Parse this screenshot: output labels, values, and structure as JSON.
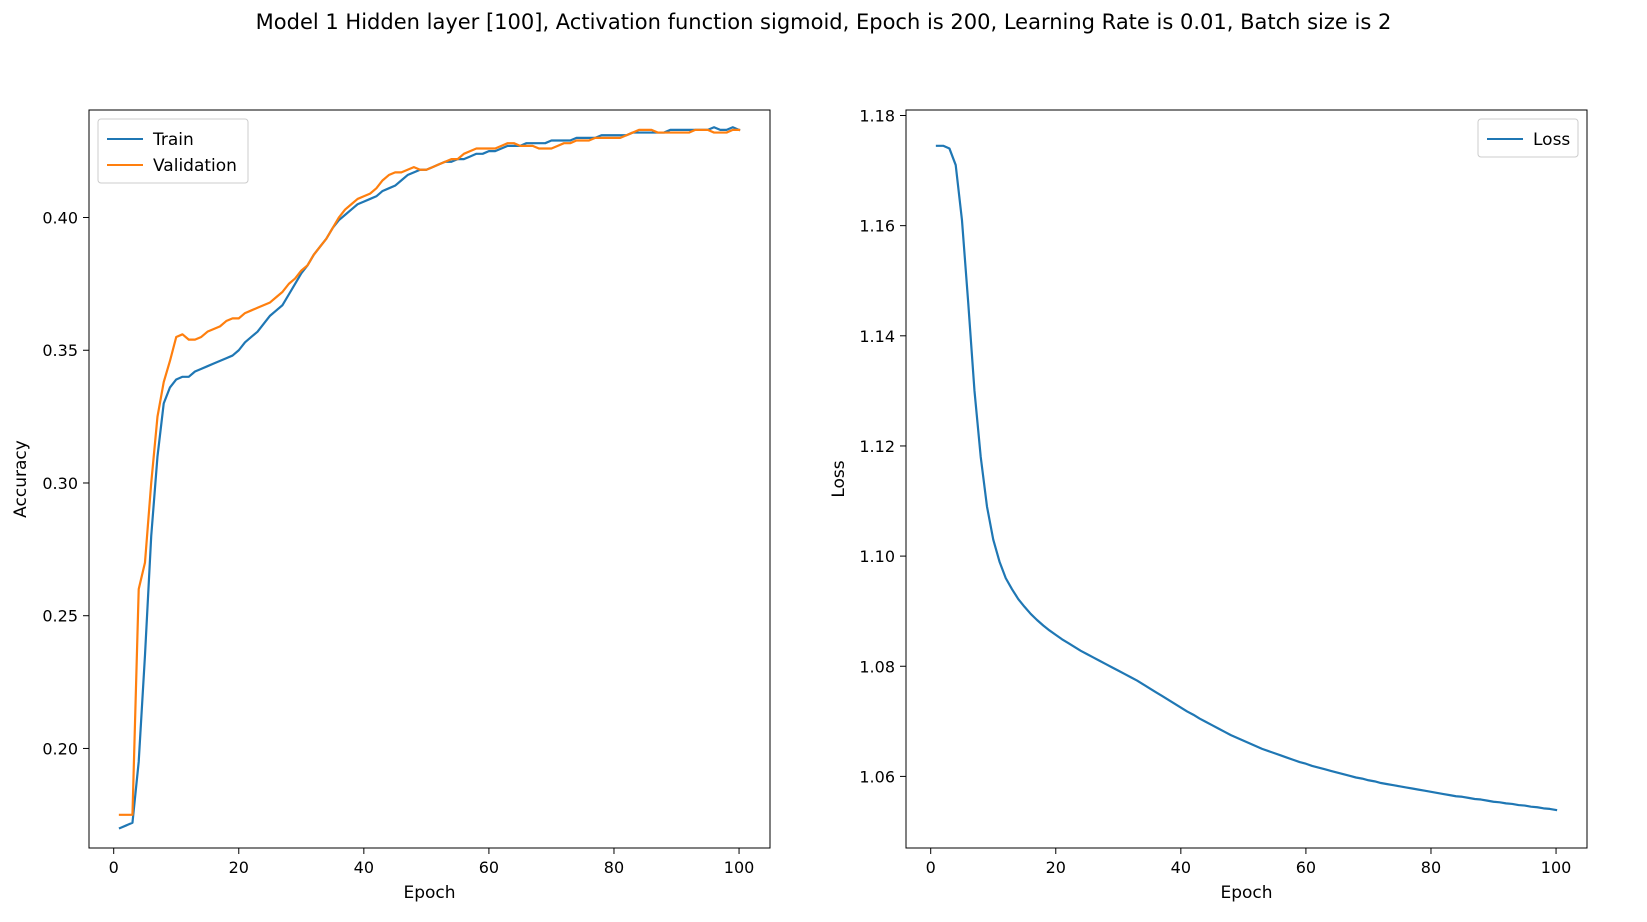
{
  "figure": {
    "title": "Model 1 Hidden layer [100], Activation function sigmoid, Epoch is 200, Learning Rate is 0.01, Batch size is 2"
  },
  "chart_data": [
    {
      "type": "line",
      "title": "",
      "xlabel": "Epoch",
      "ylabel": "Accuracy",
      "xlim": [
        -3.95,
        104.95
      ],
      "ylim": [
        0.1625,
        0.4405
      ],
      "xticks": [
        0,
        20,
        40,
        60,
        80,
        100
      ],
      "yticks": [
        0.2,
        0.25,
        0.3,
        0.35,
        0.4
      ],
      "ytick_labels": [
        "0.20",
        "0.25",
        "0.30",
        "0.35",
        "0.40"
      ],
      "grid": false,
      "legend": "upper-left",
      "x": [
        1,
        2,
        3,
        4,
        5,
        6,
        7,
        8,
        9,
        10,
        11,
        12,
        13,
        14,
        15,
        16,
        17,
        18,
        19,
        20,
        21,
        22,
        23,
        24,
        25,
        26,
        27,
        28,
        29,
        30,
        31,
        32,
        33,
        34,
        35,
        36,
        37,
        38,
        39,
        40,
        41,
        42,
        43,
        44,
        45,
        46,
        47,
        48,
        49,
        50,
        51,
        52,
        53,
        54,
        55,
        56,
        57,
        58,
        59,
        60,
        61,
        62,
        63,
        64,
        65,
        66,
        67,
        68,
        69,
        70,
        71,
        72,
        73,
        74,
        75,
        76,
        77,
        78,
        79,
        80,
        81,
        82,
        83,
        84,
        85,
        86,
        87,
        88,
        89,
        90,
        91,
        92,
        93,
        94,
        95,
        96,
        97,
        98,
        99,
        100
      ],
      "series": [
        {
          "name": "Train",
          "color": "#1f77b4",
          "values": [
            0.17,
            0.171,
            0.172,
            0.195,
            0.235,
            0.28,
            0.31,
            0.33,
            0.336,
            0.339,
            0.34,
            0.34,
            0.342,
            0.343,
            0.344,
            0.345,
            0.346,
            0.347,
            0.348,
            0.35,
            0.353,
            0.355,
            0.357,
            0.36,
            0.363,
            0.365,
            0.367,
            0.371,
            0.375,
            0.379,
            0.382,
            0.386,
            0.389,
            0.392,
            0.396,
            0.399,
            0.401,
            0.403,
            0.405,
            0.406,
            0.407,
            0.408,
            0.41,
            0.411,
            0.412,
            0.414,
            0.416,
            0.417,
            0.418,
            0.418,
            0.419,
            0.42,
            0.421,
            0.421,
            0.422,
            0.422,
            0.423,
            0.424,
            0.424,
            0.425,
            0.425,
            0.426,
            0.427,
            0.427,
            0.427,
            0.428,
            0.428,
            0.428,
            0.428,
            0.429,
            0.429,
            0.429,
            0.429,
            0.43,
            0.43,
            0.43,
            0.43,
            0.431,
            0.431,
            0.431,
            0.431,
            0.431,
            0.432,
            0.432,
            0.432,
            0.432,
            0.432,
            0.432,
            0.433,
            0.433,
            0.433,
            0.433,
            0.433,
            0.433,
            0.433,
            0.434,
            0.433,
            0.433,
            0.434,
            0.433
          ]
        },
        {
          "name": "Validation",
          "color": "#ff7f0e",
          "values": [
            0.175,
            0.175,
            0.175,
            0.26,
            0.27,
            0.3,
            0.325,
            0.338,
            0.346,
            0.355,
            0.356,
            0.354,
            0.354,
            0.355,
            0.357,
            0.358,
            0.359,
            0.361,
            0.362,
            0.362,
            0.364,
            0.365,
            0.366,
            0.367,
            0.368,
            0.37,
            0.372,
            0.375,
            0.377,
            0.38,
            0.382,
            0.386,
            0.389,
            0.392,
            0.396,
            0.4,
            0.403,
            0.405,
            0.407,
            0.408,
            0.409,
            0.411,
            0.414,
            0.416,
            0.417,
            0.417,
            0.418,
            0.419,
            0.418,
            0.418,
            0.419,
            0.42,
            0.421,
            0.422,
            0.422,
            0.424,
            0.425,
            0.426,
            0.426,
            0.426,
            0.426,
            0.427,
            0.428,
            0.428,
            0.427,
            0.427,
            0.427,
            0.426,
            0.426,
            0.426,
            0.427,
            0.428,
            0.428,
            0.429,
            0.429,
            0.429,
            0.43,
            0.43,
            0.43,
            0.43,
            0.43,
            0.431,
            0.432,
            0.433,
            0.433,
            0.433,
            0.432,
            0.432,
            0.432,
            0.432,
            0.432,
            0.432,
            0.433,
            0.433,
            0.433,
            0.432,
            0.432,
            0.432,
            0.433,
            0.433
          ]
        }
      ]
    },
    {
      "type": "line",
      "title": "",
      "xlabel": "Epoch",
      "ylabel": "Loss",
      "xlim": [
        -3.95,
        104.95
      ],
      "ylim": [
        1.047,
        1.181
      ],
      "xticks": [
        0,
        20,
        40,
        60,
        80,
        100
      ],
      "yticks": [
        1.06,
        1.08,
        1.1,
        1.12,
        1.14,
        1.16,
        1.18
      ],
      "ytick_labels": [
        "1.06",
        "1.08",
        "1.10",
        "1.12",
        "1.14",
        "1.16",
        "1.18"
      ],
      "grid": false,
      "legend": "upper-right",
      "x": [
        1,
        2,
        3,
        4,
        5,
        6,
        7,
        8,
        9,
        10,
        11,
        12,
        13,
        14,
        15,
        16,
        17,
        18,
        19,
        20,
        21,
        22,
        23,
        24,
        25,
        26,
        27,
        28,
        29,
        30,
        31,
        32,
        33,
        34,
        35,
        36,
        37,
        38,
        39,
        40,
        41,
        42,
        43,
        44,
        45,
        46,
        47,
        48,
        49,
        50,
        51,
        52,
        53,
        54,
        55,
        56,
        57,
        58,
        59,
        60,
        61,
        62,
        63,
        64,
        65,
        66,
        67,
        68,
        69,
        70,
        71,
        72,
        73,
        74,
        75,
        76,
        77,
        78,
        79,
        80,
        81,
        82,
        83,
        84,
        85,
        86,
        87,
        88,
        89,
        90,
        91,
        92,
        93,
        94,
        95,
        96,
        97,
        98,
        99,
        100
      ],
      "series": [
        {
          "name": "Loss",
          "color": "#1f77b4",
          "values": [
            1.1745,
            1.1745,
            1.174,
            1.171,
            1.161,
            1.146,
            1.13,
            1.118,
            1.109,
            1.103,
            1.099,
            1.096,
            1.094,
            1.0922,
            1.0908,
            1.0895,
            1.0884,
            1.0874,
            1.0865,
            1.0857,
            1.0849,
            1.0842,
            1.0835,
            1.0828,
            1.0822,
            1.0816,
            1.081,
            1.0804,
            1.0798,
            1.0792,
            1.0786,
            1.078,
            1.0774,
            1.0767,
            1.076,
            1.0753,
            1.0746,
            1.0739,
            1.0732,
            1.0725,
            1.0718,
            1.0712,
            1.0705,
            1.0699,
            1.0693,
            1.0687,
            1.0681,
            1.0675,
            1.067,
            1.0665,
            1.066,
            1.0655,
            1.065,
            1.0646,
            1.0642,
            1.0638,
            1.0634,
            1.063,
            1.0626,
            1.0623,
            1.0619,
            1.0616,
            1.0613,
            1.061,
            1.0607,
            1.0604,
            1.0601,
            1.0598,
            1.0596,
            1.0593,
            1.0591,
            1.0588,
            1.0586,
            1.0584,
            1.0582,
            1.058,
            1.0578,
            1.0576,
            1.0574,
            1.0572,
            1.057,
            1.0568,
            1.0566,
            1.0564,
            1.0563,
            1.0561,
            1.0559,
            1.0558,
            1.0556,
            1.0554,
            1.0553,
            1.0551,
            1.055,
            1.0548,
            1.0547,
            1.0545,
            1.0544,
            1.0542,
            1.0541,
            1.0539
          ]
        }
      ]
    }
  ]
}
